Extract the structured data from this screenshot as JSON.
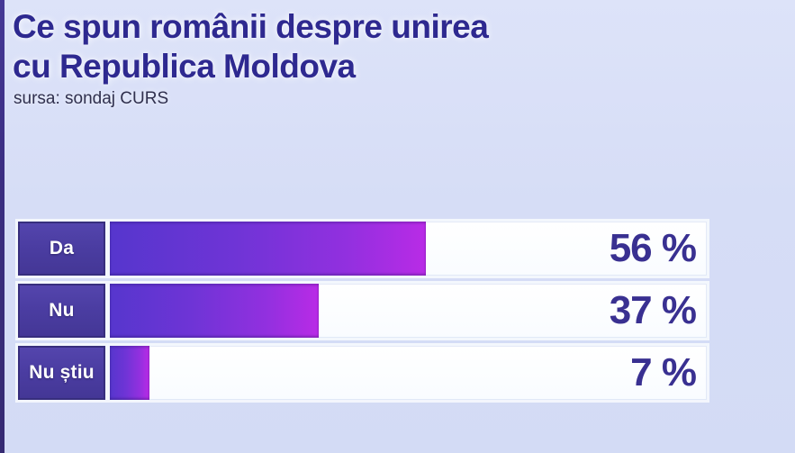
{
  "header": {
    "title_line1": "Ce spun românii despre unirea",
    "title_line2": "cu Republica Moldova",
    "source": "sursa: sondaj CURS"
  },
  "colors": {
    "background": "#d7def6",
    "left_strip": "#3b2e81",
    "title_text": "#2e2990",
    "label_box": "#4b3da2",
    "label_box_border": "#372e7d",
    "label_text": "#ffffff",
    "track": "#fbfdff",
    "bar_gradient_start": "#5636cd",
    "bar_gradient_end": "#b92be6",
    "value_text": "#393091"
  },
  "chart_data": {
    "type": "bar",
    "orientation": "horizontal",
    "title": "Ce spun românii despre unirea cu Republica Moldova",
    "source": "sursa: sondaj CURS",
    "categories": [
      "Da",
      "Nu",
      "Nu știu"
    ],
    "values": [
      56,
      37,
      7
    ],
    "value_labels": [
      "56 %",
      "37 %",
      "7 %"
    ],
    "unit": "%",
    "xlim": [
      0,
      100
    ],
    "grid": false,
    "legend": false,
    "value_label_position": "inside-track-right"
  }
}
